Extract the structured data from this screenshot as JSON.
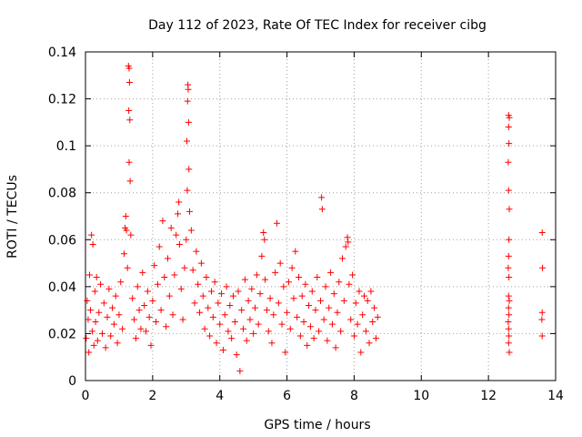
{
  "chart_data": {
    "type": "scatter",
    "title": "Day 112 of 2023, Rate Of TEC Index for receiver cibg",
    "xlabel": "GPS time / hours",
    "ylabel": "ROTI / TECUs",
    "xlim": [
      0,
      14
    ],
    "ylim": [
      0,
      0.14
    ],
    "x_ticks": [
      0,
      2,
      4,
      6,
      8,
      10,
      12,
      14
    ],
    "x_tick_labels": [
      "0",
      "2",
      "4",
      "6",
      "8",
      "10",
      "12",
      "14"
    ],
    "y_ticks": [
      0,
      0.02,
      0.04,
      0.06,
      0.08,
      0.1,
      0.12,
      0.14
    ],
    "y_tick_labels": [
      "0",
      "0.02",
      "0.04",
      "0.06",
      "0.08",
      "0.1",
      "0.12",
      "0.14"
    ],
    "grid": true,
    "marker": "+",
    "marker_color": "#ff0000",
    "series": [
      {
        "name": "ROTI",
        "points": [
          [
            0.02,
            0.018
          ],
          [
            0.05,
            0.034
          ],
          [
            0.08,
            0.026
          ],
          [
            0.1,
            0.012
          ],
          [
            0.12,
            0.045
          ],
          [
            0.15,
            0.03
          ],
          [
            0.18,
            0.062
          ],
          [
            0.2,
            0.021
          ],
          [
            0.22,
            0.058
          ],
          [
            0.25,
            0.015
          ],
          [
            0.28,
            0.038
          ],
          [
            0.3,
            0.025
          ],
          [
            0.33,
            0.044
          ],
          [
            0.36,
            0.017
          ],
          [
            0.4,
            0.029
          ],
          [
            0.45,
            0.041
          ],
          [
            0.5,
            0.02
          ],
          [
            0.55,
            0.033
          ],
          [
            0.6,
            0.014
          ],
          [
            0.65,
            0.027
          ],
          [
            0.7,
            0.039
          ],
          [
            0.75,
            0.019
          ],
          [
            0.8,
            0.031
          ],
          [
            0.85,
            0.024
          ],
          [
            0.9,
            0.036
          ],
          [
            0.95,
            0.016
          ],
          [
            1.0,
            0.028
          ],
          [
            1.05,
            0.042
          ],
          [
            1.1,
            0.022
          ],
          [
            1.15,
            0.054
          ],
          [
            1.18,
            0.065
          ],
          [
            1.2,
            0.07
          ],
          [
            1.22,
            0.064
          ],
          [
            1.25,
            0.048
          ],
          [
            1.28,
            0.134
          ],
          [
            1.3,
            0.133
          ],
          [
            1.31,
            0.127
          ],
          [
            1.29,
            0.115
          ],
          [
            1.32,
            0.111
          ],
          [
            1.3,
            0.093
          ],
          [
            1.33,
            0.085
          ],
          [
            1.35,
            0.062
          ],
          [
            1.4,
            0.035
          ],
          [
            1.45,
            0.026
          ],
          [
            1.5,
            0.018
          ],
          [
            1.55,
            0.04
          ],
          [
            1.6,
            0.03
          ],
          [
            1.65,
            0.022
          ],
          [
            1.7,
            0.046
          ],
          [
            1.75,
            0.032
          ],
          [
            1.8,
            0.021
          ],
          [
            1.85,
            0.038
          ],
          [
            1.9,
            0.027
          ],
          [
            1.95,
            0.015
          ],
          [
            2.0,
            0.034
          ],
          [
            2.05,
            0.049
          ],
          [
            2.1,
            0.025
          ],
          [
            2.15,
            0.041
          ],
          [
            2.2,
            0.057
          ],
          [
            2.25,
            0.03
          ],
          [
            2.3,
            0.068
          ],
          [
            2.35,
            0.044
          ],
          [
            2.4,
            0.023
          ],
          [
            2.45,
            0.052
          ],
          [
            2.5,
            0.036
          ],
          [
            2.55,
            0.065
          ],
          [
            2.6,
            0.028
          ],
          [
            2.65,
            0.045
          ],
          [
            2.7,
            0.062
          ],
          [
            2.75,
            0.071
          ],
          [
            2.78,
            0.076
          ],
          [
            2.8,
            0.058
          ],
          [
            2.85,
            0.039
          ],
          [
            2.9,
            0.026
          ],
          [
            2.95,
            0.048
          ],
          [
            3.0,
            0.06
          ],
          [
            3.02,
            0.102
          ],
          [
            3.05,
            0.126
          ],
          [
            3.06,
            0.124
          ],
          [
            3.04,
            0.119
          ],
          [
            3.07,
            0.11
          ],
          [
            3.08,
            0.09
          ],
          [
            3.03,
            0.081
          ],
          [
            3.1,
            0.072
          ],
          [
            3.15,
            0.064
          ],
          [
            3.2,
            0.047
          ],
          [
            3.25,
            0.033
          ],
          [
            3.3,
            0.055
          ],
          [
            3.35,
            0.041
          ],
          [
            3.4,
            0.029
          ],
          [
            3.45,
            0.05
          ],
          [
            3.5,
            0.036
          ],
          [
            3.55,
            0.022
          ],
          [
            3.6,
            0.044
          ],
          [
            3.65,
            0.031
          ],
          [
            3.7,
            0.019
          ],
          [
            3.75,
            0.038
          ],
          [
            3.8,
            0.027
          ],
          [
            3.85,
            0.042
          ],
          [
            3.9,
            0.016
          ],
          [
            3.95,
            0.033
          ],
          [
            4.0,
            0.024
          ],
          [
            4.05,
            0.037
          ],
          [
            4.1,
            0.013
          ],
          [
            4.15,
            0.028
          ],
          [
            4.2,
            0.04
          ],
          [
            4.25,
            0.021
          ],
          [
            4.3,
            0.032
          ],
          [
            4.35,
            0.018
          ],
          [
            4.4,
            0.036
          ],
          [
            4.45,
            0.025
          ],
          [
            4.5,
            0.011
          ],
          [
            4.55,
            0.038
          ],
          [
            4.6,
            0.004
          ],
          [
            4.65,
            0.03
          ],
          [
            4.7,
            0.022
          ],
          [
            4.75,
            0.043
          ],
          [
            4.8,
            0.017
          ],
          [
            4.85,
            0.034
          ],
          [
            4.9,
            0.026
          ],
          [
            4.95,
            0.039
          ],
          [
            5.0,
            0.02
          ],
          [
            5.05,
            0.031
          ],
          [
            5.1,
            0.045
          ],
          [
            5.15,
            0.024
          ],
          [
            5.2,
            0.037
          ],
          [
            5.25,
            0.053
          ],
          [
            5.3,
            0.063
          ],
          [
            5.33,
            0.06
          ],
          [
            5.35,
            0.043
          ],
          [
            5.4,
            0.03
          ],
          [
            5.45,
            0.021
          ],
          [
            5.5,
            0.035
          ],
          [
            5.55,
            0.016
          ],
          [
            5.6,
            0.028
          ],
          [
            5.65,
            0.046
          ],
          [
            5.7,
            0.067
          ],
          [
            5.75,
            0.033
          ],
          [
            5.8,
            0.05
          ],
          [
            5.85,
            0.024
          ],
          [
            5.9,
            0.04
          ],
          [
            5.95,
            0.012
          ],
          [
            6.0,
            0.029
          ],
          [
            6.05,
            0.042
          ],
          [
            6.1,
            0.022
          ],
          [
            6.15,
            0.048
          ],
          [
            6.2,
            0.035
          ],
          [
            6.25,
            0.055
          ],
          [
            6.3,
            0.027
          ],
          [
            6.35,
            0.044
          ],
          [
            6.4,
            0.019
          ],
          [
            6.45,
            0.036
          ],
          [
            6.5,
            0.025
          ],
          [
            6.55,
            0.041
          ],
          [
            6.6,
            0.015
          ],
          [
            6.65,
            0.032
          ],
          [
            6.7,
            0.023
          ],
          [
            6.75,
            0.038
          ],
          [
            6.8,
            0.018
          ],
          [
            6.85,
            0.03
          ],
          [
            6.9,
            0.044
          ],
          [
            6.95,
            0.021
          ],
          [
            7.0,
            0.034
          ],
          [
            7.03,
            0.078
          ],
          [
            7.05,
            0.073
          ],
          [
            7.1,
            0.026
          ],
          [
            7.15,
            0.04
          ],
          [
            7.2,
            0.017
          ],
          [
            7.25,
            0.031
          ],
          [
            7.3,
            0.046
          ],
          [
            7.35,
            0.024
          ],
          [
            7.4,
            0.037
          ],
          [
            7.45,
            0.014
          ],
          [
            7.5,
            0.029
          ],
          [
            7.55,
            0.042
          ],
          [
            7.6,
            0.021
          ],
          [
            7.65,
            0.052
          ],
          [
            7.7,
            0.034
          ],
          [
            7.75,
            0.057
          ],
          [
            7.8,
            0.061
          ],
          [
            7.82,
            0.059
          ],
          [
            7.85,
            0.041
          ],
          [
            7.9,
            0.026
          ],
          [
            7.95,
            0.045
          ],
          [
            8.0,
            0.019
          ],
          [
            8.05,
            0.033
          ],
          [
            8.1,
            0.024
          ],
          [
            8.15,
            0.038
          ],
          [
            8.2,
            0.012
          ],
          [
            8.25,
            0.028
          ],
          [
            8.3,
            0.036
          ],
          [
            8.35,
            0.021
          ],
          [
            8.4,
            0.034
          ],
          [
            8.45,
            0.016
          ],
          [
            8.5,
            0.038
          ],
          [
            8.55,
            0.025
          ],
          [
            8.6,
            0.031
          ],
          [
            8.65,
            0.018
          ],
          [
            8.7,
            0.027
          ],
          [
            12.6,
            0.113
          ],
          [
            12.62,
            0.112
          ],
          [
            12.6,
            0.108
          ],
          [
            12.61,
            0.101
          ],
          [
            12.59,
            0.093
          ],
          [
            12.6,
            0.081
          ],
          [
            12.62,
            0.073
          ],
          [
            12.61,
            0.06
          ],
          [
            12.6,
            0.053
          ],
          [
            12.59,
            0.048
          ],
          [
            12.61,
            0.044
          ],
          [
            12.6,
            0.036
          ],
          [
            12.62,
            0.034
          ],
          [
            12.6,
            0.031
          ],
          [
            12.61,
            0.028
          ],
          [
            12.59,
            0.025
          ],
          [
            12.6,
            0.022
          ],
          [
            12.61,
            0.019
          ],
          [
            12.6,
            0.016
          ],
          [
            12.62,
            0.012
          ],
          [
            13.6,
            0.063
          ],
          [
            13.61,
            0.048
          ],
          [
            13.6,
            0.029
          ],
          [
            13.59,
            0.026
          ],
          [
            13.6,
            0.019
          ]
        ]
      }
    ]
  }
}
